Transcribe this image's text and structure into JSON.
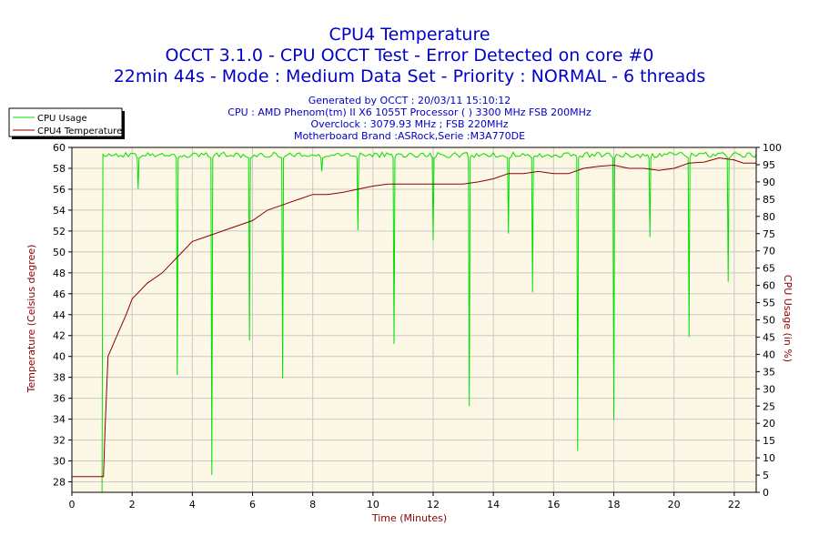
{
  "title": {
    "line1": "CPU4 Temperature",
    "line2": "OCCT 3.1.0 - CPU OCCT Test - Error Detected on core #0",
    "line3": "22min 44s - Mode : Medium Data Set - Priority : NORMAL - 6 threads"
  },
  "info": [
    "Generated by OCCT : 20/03/11 15:10:12",
    "CPU : AMD Phenom(tm) II X6 1055T Processor (  ) 3300 MHz FSB 200MHz",
    "Overclock : 3079.93 MHz ; FSB 220MHz",
    "Motherboard Brand :ASRock,Serie :M3A770DE"
  ],
  "colors": {
    "plot_bg": "#fdf8e6",
    "cpu_usage": "#00e000",
    "temperature": "#8b0000",
    "grid": "#c8c8c8",
    "title": "#0000c8"
  },
  "chart_data": {
    "type": "line",
    "xlabel": "Time (Minutes)",
    "ylabel_left": "Temperature (Celsius degree)",
    "ylabel_right": "CPU Usage (in %)",
    "xlim": [
      0,
      22.73
    ],
    "ylim_left": [
      27,
      60
    ],
    "ylim_right": [
      0,
      100
    ],
    "x_ticks": [
      0,
      2,
      4,
      6,
      8,
      10,
      12,
      14,
      16,
      18,
      20,
      22
    ],
    "y_left_ticks": [
      28,
      30,
      32,
      34,
      36,
      38,
      40,
      42,
      44,
      46,
      48,
      50,
      52,
      54,
      56,
      58,
      60
    ],
    "y_right_ticks": [
      0,
      5,
      10,
      15,
      20,
      25,
      30,
      35,
      40,
      45,
      50,
      55,
      60,
      65,
      70,
      75,
      80,
      85,
      90,
      95,
      100
    ],
    "grid": true,
    "legend_position": "top-left",
    "series": [
      {
        "name": "CPU Usage",
        "axis": "right",
        "baseline": 98,
        "start": {
          "x": 1.0,
          "value": 0
        },
        "dips": [
          {
            "x": 1.07,
            "value": 0
          },
          {
            "x": 2.2,
            "value": 88
          },
          {
            "x": 3.5,
            "value": 34
          },
          {
            "x": 4.65,
            "value": 5
          },
          {
            "x": 5.9,
            "value": 44
          },
          {
            "x": 7.0,
            "value": 33
          },
          {
            "x": 8.3,
            "value": 93
          },
          {
            "x": 9.5,
            "value": 76
          },
          {
            "x": 10.7,
            "value": 43
          },
          {
            "x": 12.0,
            "value": 73
          },
          {
            "x": 13.2,
            "value": 25
          },
          {
            "x": 14.5,
            "value": 75
          },
          {
            "x": 15.3,
            "value": 58
          },
          {
            "x": 16.8,
            "value": 12
          },
          {
            "x": 18.0,
            "value": 21
          },
          {
            "x": 19.2,
            "value": 74
          },
          {
            "x": 20.5,
            "value": 45
          },
          {
            "x": 21.8,
            "value": 61
          }
        ]
      },
      {
        "name": "CPU4 Temperature",
        "axis": "left",
        "points": [
          [
            0,
            28.5
          ],
          [
            1.0,
            28.5
          ],
          [
            1.05,
            28.5
          ],
          [
            1.1,
            33
          ],
          [
            1.2,
            40
          ],
          [
            1.5,
            42
          ],
          [
            1.8,
            44
          ],
          [
            2.0,
            45.5
          ],
          [
            2.5,
            47
          ],
          [
            3.0,
            48
          ],
          [
            3.5,
            49.5
          ],
          [
            4.0,
            51
          ],
          [
            4.5,
            51.5
          ],
          [
            5.0,
            52
          ],
          [
            5.5,
            52.5
          ],
          [
            6.0,
            53
          ],
          [
            6.5,
            54
          ],
          [
            7.0,
            54.5
          ],
          [
            7.5,
            55
          ],
          [
            8.0,
            55.5
          ],
          [
            8.5,
            55.5
          ],
          [
            9.0,
            55.7
          ],
          [
            9.5,
            56
          ],
          [
            10.0,
            56.3
          ],
          [
            10.5,
            56.5
          ],
          [
            11.0,
            56.5
          ],
          [
            11.5,
            56.5
          ],
          [
            12.0,
            56.5
          ],
          [
            12.5,
            56.5
          ],
          [
            13.0,
            56.5
          ],
          [
            13.5,
            56.7
          ],
          [
            14.0,
            57
          ],
          [
            14.5,
            57.5
          ],
          [
            15.0,
            57.5
          ],
          [
            15.5,
            57.7
          ],
          [
            16.0,
            57.5
          ],
          [
            16.5,
            57.5
          ],
          [
            17.0,
            58
          ],
          [
            17.5,
            58.2
          ],
          [
            18.0,
            58.3
          ],
          [
            18.5,
            58
          ],
          [
            19.0,
            58
          ],
          [
            19.5,
            57.8
          ],
          [
            20.0,
            58
          ],
          [
            20.5,
            58.5
          ],
          [
            21.0,
            58.6
          ],
          [
            21.5,
            59
          ],
          [
            22.0,
            58.8
          ],
          [
            22.3,
            58.5
          ],
          [
            22.73,
            58.5
          ]
        ]
      }
    ]
  }
}
